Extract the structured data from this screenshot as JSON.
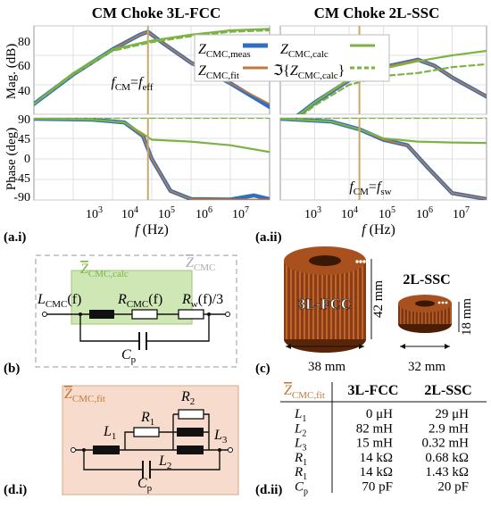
{
  "colors": {
    "meas": "#2f6fc4",
    "fit": "#c07a3a",
    "calc": "#7cb342",
    "cursor": "#c8a96a",
    "grid": "#d9d9d9",
    "fit_panel": "#f7dccd",
    "calc_box": "#cfe6b5",
    "copper": "#9a4a1f"
  },
  "panel_a_left": {
    "title": "CM Choke 3L-FCC",
    "cursor_label_a": "f",
    "cursor_label_a_sub": "CM",
    "cursor_label_eq": "=",
    "cursor_label_b": "f",
    "cursor_label_b_sub": "eff",
    "caption": "(a.i)"
  },
  "panel_a_right": {
    "title": "CM Choke 2L-SSC",
    "cursor_label_a": "f",
    "cursor_label_a_sub": "CM",
    "cursor_label_eq": "=",
    "cursor_label_b": "f",
    "cursor_label_b_sub": "sw",
    "caption": "(a.ii)"
  },
  "axes": {
    "mag_ylabel": "Mag. (dB)",
    "phase_ylabel": "Phase (deg)",
    "xlabel_f": "f",
    "xlabel_unit": " (Hz)",
    "mag_ticks": [
      "80",
      "60",
      "40"
    ],
    "phase_ticks": [
      "90",
      "45",
      "0",
      "-45",
      "-90"
    ],
    "x_ticks": [
      "10",
      "10",
      "10",
      "10",
      "10"
    ],
    "x_tick_exps": [
      "3",
      "4",
      "5",
      "6",
      "7"
    ]
  },
  "legend": {
    "meas_main": "Z",
    "meas_sub": "CMC,meas",
    "calc_main": "Z",
    "calc_sub": "CMC,calc",
    "fit_main": "Z",
    "fit_sub": "CMC,fit",
    "imag_prefix": "ℑ{",
    "imag_main": "Z",
    "imag_sub": "CMC,calc",
    "imag_suffix": "}"
  },
  "chart_data": [
    {
      "type": "line",
      "title": "CM Choke 3L-FCC",
      "panel": "magnitude",
      "ylabel": "Mag. (dB)",
      "x_scale": "log",
      "xlim": [
        100,
        100000000
      ],
      "ylim": [
        30,
        90
      ],
      "cursor_x": 80000,
      "series": [
        {
          "name": "Z_CMC,meas",
          "x": [
            100,
            1000,
            10000,
            50000,
            80000,
            200000,
            1000000,
            10000000,
            100000000
          ],
          "y": [
            37,
            57,
            74,
            84,
            86,
            78,
            65,
            51,
            35
          ]
        },
        {
          "name": "Z_CMC,fit",
          "x": [
            100,
            1000,
            10000,
            50000,
            80000,
            200000,
            1000000,
            10000000,
            100000000
          ],
          "y": [
            37,
            57,
            74,
            84,
            86,
            78,
            65,
            51,
            37
          ]
        },
        {
          "name": "Z_CMC,calc",
          "x": [
            100,
            1000,
            10000,
            100000,
            1000000,
            10000000,
            100000000
          ],
          "y": [
            37,
            58,
            74,
            80,
            84,
            87,
            88
          ]
        },
        {
          "name": "Im{Z_CMC,calc}",
          "x": [
            100,
            1000,
            10000,
            100000,
            1000000,
            10000000,
            100000000
          ],
          "y": [
            37,
            57,
            73,
            79,
            83,
            86,
            87
          ]
        }
      ]
    },
    {
      "type": "line",
      "title": "CM Choke 3L-FCC",
      "panel": "phase",
      "ylabel": "Phase (deg)",
      "xlabel": "f (Hz)",
      "x_scale": "log",
      "xlim": [
        100,
        100000000
      ],
      "ylim": [
        -90,
        90
      ],
      "cursor_x": 80000,
      "series": [
        {
          "name": "Z_CMC,meas",
          "x": [
            100,
            3000,
            20000,
            60000,
            100000,
            300000,
            1000000,
            10000000,
            40000000,
            100000000
          ],
          "y": [
            88,
            86,
            80,
            50,
            0,
            -70,
            -88,
            -89,
            -80,
            -88
          ]
        },
        {
          "name": "Z_CMC,fit",
          "x": [
            100,
            3000,
            20000,
            60000,
            100000,
            300000,
            1000000,
            10000000,
            100000000
          ],
          "y": [
            88,
            86,
            80,
            50,
            0,
            -70,
            -88,
            -89,
            -89
          ]
        },
        {
          "name": "Z_CMC,calc",
          "x": [
            100,
            3000,
            20000,
            60000,
            100000,
            1000000,
            10000000,
            100000000
          ],
          "y": [
            88,
            86,
            80,
            55,
            42,
            38,
            30,
            15
          ]
        },
        {
          "name": "Im{Z_CMC,calc}",
          "x": [
            100,
            100000000
          ],
          "y": [
            90,
            90
          ]
        }
      ]
    },
    {
      "type": "line",
      "title": "CM Choke 2L-SSC",
      "panel": "magnitude",
      "x_scale": "log",
      "xlim": [
        100,
        100000000
      ],
      "ylim": [
        30,
        90
      ],
      "cursor_x": 20000,
      "series": [
        {
          "name": "Z_CMC,meas",
          "x": [
            100,
            1000,
            10000,
            100000,
            1000000,
            3000000,
            10000000,
            100000000
          ],
          "y": [
            20,
            38,
            53,
            62,
            67,
            63,
            55,
            42
          ]
        },
        {
          "name": "Z_CMC,fit",
          "x": [
            100,
            1000,
            10000,
            100000,
            1000000,
            3000000,
            10000000,
            100000000
          ],
          "y": [
            20,
            38,
            53,
            62,
            67,
            63,
            55,
            42
          ]
        },
        {
          "name": "Z_CMC,calc",
          "x": [
            100,
            1000,
            10000,
            100000,
            1000000,
            10000000,
            100000000
          ],
          "y": [
            20,
            38,
            54,
            61,
            66,
            70,
            73
          ]
        },
        {
          "name": "Im{Z_CMC,calc}",
          "x": [
            100,
            1000,
            10000,
            100000,
            1000000,
            10000000,
            100000000
          ],
          "y": [
            18,
            36,
            50,
            56,
            58,
            62,
            64
          ]
        }
      ]
    },
    {
      "type": "line",
      "title": "CM Choke 2L-SSC",
      "panel": "phase",
      "xlabel": "f (Hz)",
      "x_scale": "log",
      "xlim": [
        100,
        100000000
      ],
      "ylim": [
        -90,
        90
      ],
      "cursor_x": 20000,
      "series": [
        {
          "name": "Z_CMC,meas",
          "x": [
            100,
            3000,
            20000,
            100000,
            500000,
            2000000,
            10000000,
            100000000
          ],
          "y": [
            88,
            82,
            65,
            42,
            30,
            -20,
            -75,
            -88
          ]
        },
        {
          "name": "Z_CMC,fit",
          "x": [
            100,
            3000,
            20000,
            100000,
            500000,
            2000000,
            10000000,
            100000000
          ],
          "y": [
            88,
            82,
            65,
            42,
            30,
            -20,
            -75,
            -88
          ]
        },
        {
          "name": "Z_CMC,calc",
          "x": [
            100,
            3000,
            20000,
            100000,
            1000000,
            10000000,
            100000000
          ],
          "y": [
            88,
            82,
            65,
            45,
            38,
            36,
            35
          ]
        },
        {
          "name": "Im{Z_CMC,calc}",
          "x": [
            100,
            100000000
          ],
          "y": [
            90,
            90
          ]
        }
      ]
    }
  ],
  "circuit_b": {
    "outer_label_main": "Z",
    "outer_label_sub": "CMC",
    "inner_label_main": "Z",
    "inner_label_sub": "CMC,calc",
    "L_main": "L",
    "L_sub": "CMC",
    "L_suffix": "(f)",
    "R_main": "R",
    "R_sub": "CMC",
    "R_suffix": "(f)",
    "Rw_main": "R",
    "Rw_sub": "w",
    "Rw_suffix": "(f)/3",
    "Cp_main": "C",
    "Cp_sub": "p",
    "caption": "(b)"
  },
  "photo_c": {
    "left_label": "3L-FCC",
    "right_label": "2L-SSC",
    "left_height": "42 mm",
    "left_width": "38 mm",
    "right_height": "18 mm",
    "right_width": "32 mm",
    "caption": "(c)"
  },
  "circuit_d": {
    "label_main": "Z",
    "label_sub": "CMC,fit",
    "L1_main": "L",
    "L1_sub": "1",
    "R1_main": "R",
    "R1_sub": "1",
    "R2_main": "R",
    "R2_sub": "2",
    "L2_main": "L",
    "L2_sub": "2",
    "L3_main": "L",
    "L3_sub": "3",
    "Cp_main": "C",
    "Cp_sub": "p",
    "caption": "(d.i)"
  },
  "table_d": {
    "corner_main": "Z",
    "corner_sub": "CMC,fit",
    "col1": "3L-FCC",
    "col2": "2L-SSC",
    "rows": [
      {
        "p_main": "L",
        "p_sub": "1",
        "v1": "0 μH",
        "v2": "29 μH"
      },
      {
        "p_main": "L",
        "p_sub": "2",
        "v1": "82 mH",
        "v2": "2.9 mH"
      },
      {
        "p_main": "L",
        "p_sub": "3",
        "v1": "15 mH",
        "v2": "0.32 mH"
      },
      {
        "p_main": "R",
        "p_sub": "1",
        "v1": "14 kΩ",
        "v2": "0.68 kΩ"
      },
      {
        "p_main": "R",
        "p_sub": "1",
        "v1": "14 kΩ",
        "v2": "1.43 kΩ"
      },
      {
        "p_main": "C",
        "p_sub": "p",
        "v1": "70 pF",
        "v2": "20 pF"
      }
    ],
    "caption": "(d.ii)"
  }
}
